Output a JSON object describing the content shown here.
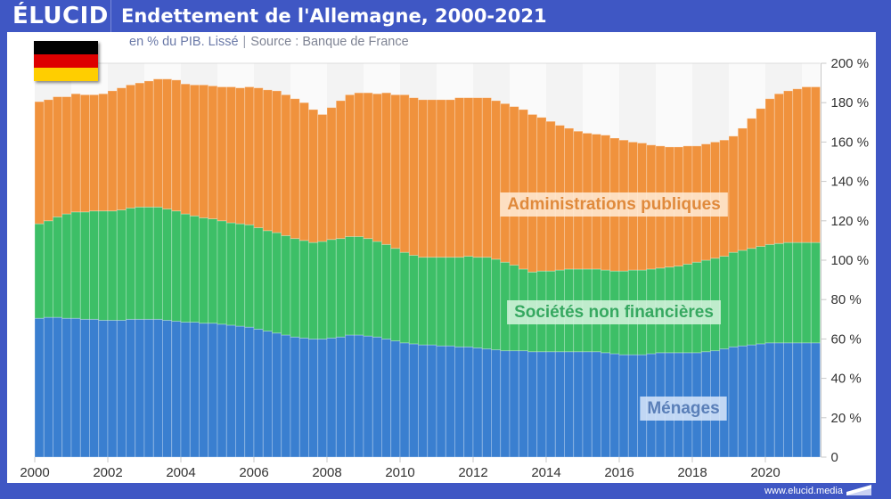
{
  "header": {
    "logo": "ÉLUCID",
    "title": "Endettement de l'Allemagne, 2000-2021"
  },
  "subtitle": {
    "unit": "en % du PIB. Lissé",
    "separator": "|",
    "source": "Source : Banque de France"
  },
  "flag": {
    "country": "Germany",
    "colors": [
      "#000000",
      "#dd0000",
      "#ffce00"
    ]
  },
  "footer": {
    "url": "www.elucid.media"
  },
  "colors": {
    "brand": "#3f57c4",
    "menages": "#3a7fd0",
    "societes": "#3dbf67",
    "administrations": "#f0923d"
  },
  "chart_data": {
    "type": "bar",
    "stacked": true,
    "title": "Endettement de l'Allemagne, 2000-2021",
    "subtitle": "en % du PIB. Lissé | Source : Banque de France",
    "xlabel": "",
    "ylabel": "",
    "frequency": "quarterly",
    "x_start": 2000.0,
    "x_step": 0.25,
    "xlim": [
      2000,
      2021.5
    ],
    "ylim": [
      0,
      200
    ],
    "y_ticks": [
      0,
      20,
      40,
      60,
      80,
      100,
      120,
      140,
      160,
      180,
      200
    ],
    "y_tick_labels": [
      "0",
      "20 %",
      "40 %",
      "60 %",
      "80 %",
      "100 %",
      "120 %",
      "140 %",
      "160 %",
      "180 %",
      "200 %"
    ],
    "x_ticks": [
      2000,
      2002,
      2004,
      2006,
      2008,
      2010,
      2012,
      2014,
      2016,
      2018,
      2020
    ],
    "x_tick_labels": [
      "2000",
      "2002",
      "2004",
      "2006",
      "2008",
      "2010",
      "2012",
      "2014",
      "2016",
      "2018",
      "2020"
    ],
    "grid": "alternating year bands",
    "series": [
      {
        "name": "Ménages",
        "values": [
          70.5,
          71,
          71,
          70.5,
          70.5,
          70,
          70,
          69.5,
          69.5,
          69.5,
          70,
          70,
          70,
          70,
          69.5,
          69,
          68.5,
          68.5,
          68,
          68,
          67.5,
          67,
          66.5,
          66,
          65,
          64,
          63,
          62,
          61,
          60.5,
          60,
          60,
          60.5,
          61,
          62,
          62,
          61.5,
          61,
          60,
          59,
          58,
          57.5,
          57,
          57,
          56.5,
          56.5,
          56,
          56,
          55.5,
          55,
          54.5,
          54,
          54,
          54,
          53.5,
          53.5,
          53.5,
          53.5,
          53.5,
          53.5,
          53.5,
          53.5,
          53,
          52.5,
          52,
          52,
          52,
          52.5,
          53,
          53,
          53,
          53,
          53,
          53.5,
          54,
          55,
          56,
          56.5,
          57,
          57.5,
          58,
          58,
          58,
          58,
          58,
          58
        ]
      },
      {
        "name": "Sociétés non financières",
        "values": [
          48,
          49,
          51,
          53,
          54,
          54.5,
          55,
          55.5,
          55.5,
          56,
          56.5,
          57,
          57,
          57,
          56.5,
          56,
          55,
          54,
          53.5,
          53,
          52.5,
          52,
          52,
          52,
          51.5,
          51,
          51,
          50.5,
          50,
          49.5,
          49,
          49.5,
          50,
          50,
          50,
          50,
          49.5,
          48.5,
          48,
          47,
          46,
          45,
          44.5,
          44.5,
          45,
          45,
          45.5,
          46,
          46,
          46.5,
          46,
          45,
          43.5,
          41.5,
          40.5,
          41,
          41,
          41.5,
          42,
          42,
          42,
          42,
          42,
          42,
          42.5,
          43,
          43,
          43,
          43,
          43.5,
          44,
          45,
          46,
          46.5,
          47,
          47,
          48,
          48.5,
          49,
          49.5,
          50,
          50.5,
          51,
          51,
          51,
          51
        ]
      },
      {
        "name": "Administrations publiques",
        "values": [
          62,
          61.5,
          61,
          59.5,
          60,
          59.5,
          59,
          59.5,
          61,
          62,
          62.5,
          63,
          64,
          65,
          66,
          66.5,
          66,
          66.5,
          67.5,
          67.5,
          68,
          69,
          69,
          70,
          71,
          71.5,
          72,
          71.5,
          71,
          70,
          67.5,
          64.5,
          67,
          70,
          72,
          73,
          74,
          75,
          77,
          78,
          80,
          80,
          80,
          80,
          80,
          80,
          81,
          80.5,
          81,
          81,
          80.5,
          80.5,
          80.5,
          81,
          80,
          78,
          76,
          73.5,
          71.5,
          70,
          69,
          68.5,
          68.5,
          67.5,
          66.5,
          65,
          64.5,
          63,
          62,
          61,
          60.5,
          60,
          59,
          59,
          59,
          59,
          59,
          62,
          66,
          70,
          74,
          76,
          77,
          78,
          79,
          79
        ]
      }
    ],
    "series_labels": [
      {
        "name": "Administrations publiques",
        "label": "Administrations publiques"
      },
      {
        "name": "Sociétés non financières",
        "label": "Sociétés non financières"
      },
      {
        "name": "Ménages",
        "label": "Ménages"
      }
    ],
    "legend": "inline labels on right side of chart"
  }
}
